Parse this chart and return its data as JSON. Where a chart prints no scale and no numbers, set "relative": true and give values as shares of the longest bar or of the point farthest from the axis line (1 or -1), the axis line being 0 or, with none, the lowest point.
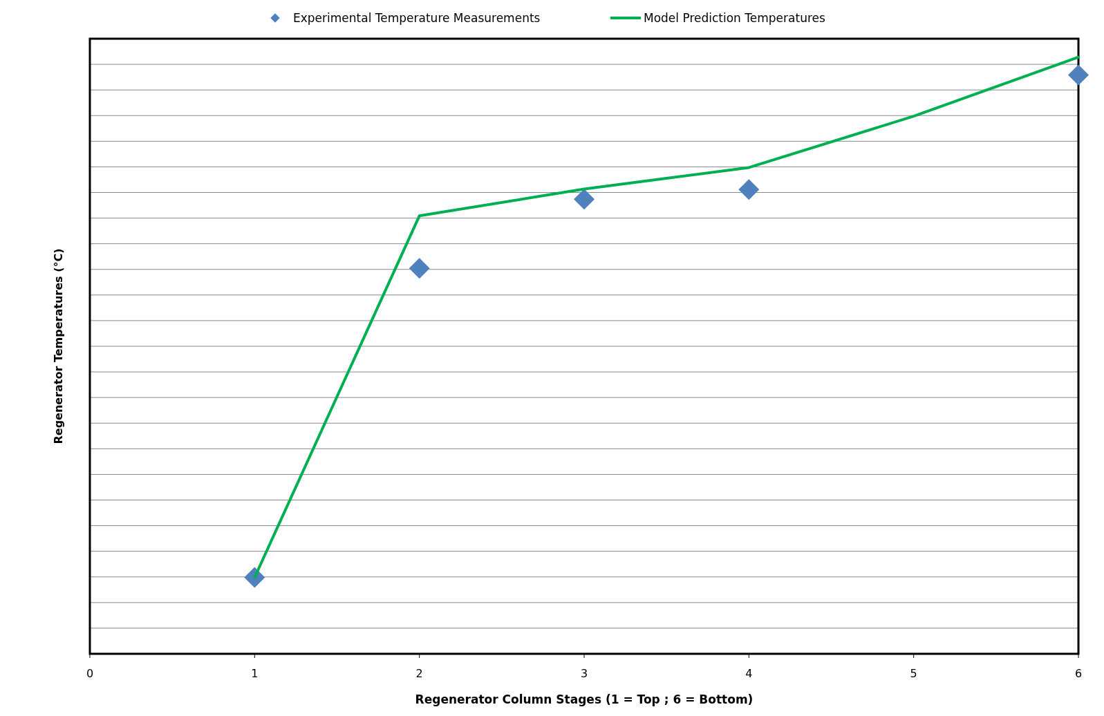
{
  "chart_data": {
    "type": "line",
    "xlabel": "Regenerator Column Stages (1 = Top ; 6 = Bottom)",
    "ylabel": "Regenerator Temperatures (°C)",
    "relative": true,
    "xlim": [
      0,
      6
    ],
    "xticks": [
      0,
      1,
      2,
      3,
      4,
      5,
      6
    ],
    "grid": "y",
    "legend": "top",
    "series": [
      {
        "name": "Experimental Temperature Measurements",
        "type": "scatter",
        "marker": "diamond",
        "color": "#4f81bd",
        "x": [
          1,
          2,
          3,
          4,
          6
        ],
        "values": [
          0.128,
          0.646,
          0.762,
          0.778,
          0.97
        ]
      },
      {
        "name": "Model Prediction Temperatures",
        "type": "line",
        "marker": "none",
        "color": "#00b050",
        "x": [
          1,
          2,
          3,
          4,
          5,
          6
        ],
        "values": [
          0.128,
          0.734,
          0.779,
          0.815,
          0.901,
          1
        ]
      }
    ]
  }
}
